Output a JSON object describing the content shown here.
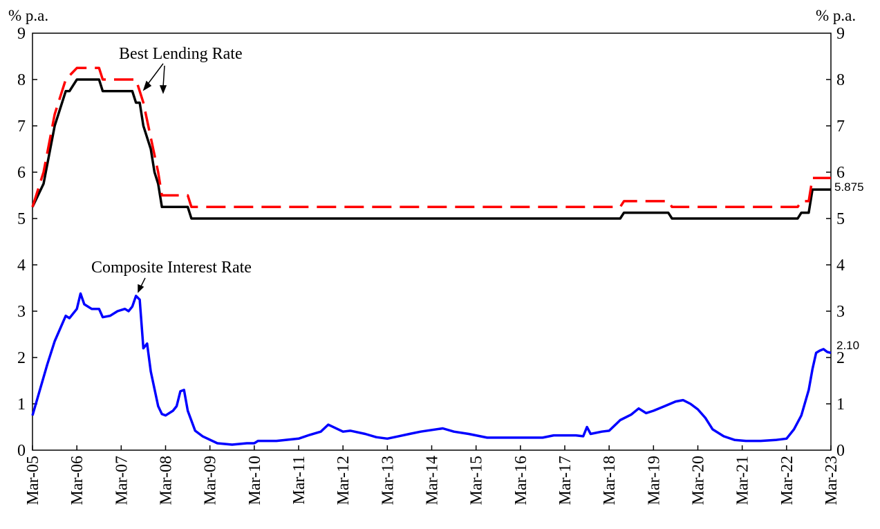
{
  "chart_data": {
    "type": "line",
    "title": "",
    "y_unit_label_left": "% p.a.",
    "y_unit_label_right": "% p.a.",
    "ylim": [
      0,
      9
    ],
    "y_ticks": [
      "0",
      "1",
      "2",
      "3",
      "4",
      "5",
      "6",
      "7",
      "8",
      "9"
    ],
    "xlim": [
      "2005-03",
      "2023-03"
    ],
    "x_ticks": [
      "Mar-05",
      "Mar-06",
      "Mar-07",
      "Mar-08",
      "Mar-09",
      "Mar-10",
      "Mar-11",
      "Mar-12",
      "Mar-13",
      "Mar-14",
      "Mar-15",
      "Mar-16",
      "Mar-17",
      "Mar-18",
      "Mar-19",
      "Mar-20",
      "Mar-21",
      "Mar-22",
      "Mar-23"
    ],
    "grid": false,
    "annotations": {
      "best_lending_rate": "Best Lending Rate",
      "composite_interest_rate": "Composite Interest Rate",
      "end_value_blr": "5.875",
      "end_value_composite": "2.10"
    },
    "series": [
      {
        "name": "Best Lending Rate",
        "color": "#000000",
        "style": "solid",
        "points": [
          [
            "2005-03",
            5.25
          ],
          [
            "2005-06",
            5.75
          ],
          [
            "2005-09",
            7.0
          ],
          [
            "2005-12",
            7.75
          ],
          [
            "2006-01",
            7.75
          ],
          [
            "2006-03",
            8.0
          ],
          [
            "2006-09",
            8.0
          ],
          [
            "2006-10",
            7.75
          ],
          [
            "2007-06",
            7.75
          ],
          [
            "2007-07",
            7.5
          ],
          [
            "2007-08",
            7.5
          ],
          [
            "2007-09",
            7.0
          ],
          [
            "2007-11",
            6.5
          ],
          [
            "2007-12",
            6.0
          ],
          [
            "2008-01",
            5.75
          ],
          [
            "2008-02",
            5.25
          ],
          [
            "2008-09",
            5.25
          ],
          [
            "2008-10",
            5.0
          ],
          [
            "2018-06",
            5.0
          ],
          [
            "2018-07",
            5.125
          ],
          [
            "2019-07",
            5.125
          ],
          [
            "2019-08",
            5.0
          ],
          [
            "2022-06",
            5.0
          ],
          [
            "2022-07",
            5.125
          ],
          [
            "2022-09",
            5.125
          ],
          [
            "2022-10",
            5.625
          ],
          [
            "2023-03",
            5.625
          ]
        ]
      },
      {
        "name": "Best Lending Rate",
        "color": "#ff0000",
        "style": "dashed",
        "points": [
          [
            "2005-03",
            5.25
          ],
          [
            "2005-06",
            6.0
          ],
          [
            "2005-09",
            7.25
          ],
          [
            "2005-12",
            8.0
          ],
          [
            "2006-03",
            8.25
          ],
          [
            "2006-09",
            8.25
          ],
          [
            "2006-10",
            8.0
          ],
          [
            "2007-07",
            8.0
          ],
          [
            "2007-08",
            7.75
          ],
          [
            "2007-09",
            7.5
          ],
          [
            "2007-11",
            6.75
          ],
          [
            "2008-01",
            6.0
          ],
          [
            "2008-02",
            5.5
          ],
          [
            "2008-09",
            5.5
          ],
          [
            "2008-10",
            5.25
          ],
          [
            "2018-06",
            5.25
          ],
          [
            "2018-07",
            5.375
          ],
          [
            "2019-07",
            5.375
          ],
          [
            "2019-08",
            5.25
          ],
          [
            "2022-06",
            5.25
          ],
          [
            "2022-07",
            5.375
          ],
          [
            "2022-09",
            5.375
          ],
          [
            "2022-10",
            5.875
          ],
          [
            "2023-03",
            5.875
          ]
        ]
      },
      {
        "name": "Composite Interest Rate",
        "color": "#0000ff",
        "style": "solid",
        "points": [
          [
            "2005-03",
            0.75
          ],
          [
            "2005-05",
            1.3
          ],
          [
            "2005-07",
            1.85
          ],
          [
            "2005-09",
            2.35
          ],
          [
            "2005-12",
            2.9
          ],
          [
            "2006-01",
            2.85
          ],
          [
            "2006-02",
            2.95
          ],
          [
            "2006-03",
            3.05
          ],
          [
            "2006-04",
            3.38
          ],
          [
            "2006-05",
            3.15
          ],
          [
            "2006-07",
            3.05
          ],
          [
            "2006-09",
            3.05
          ],
          [
            "2006-10",
            2.87
          ],
          [
            "2006-12",
            2.9
          ],
          [
            "2007-02",
            3.0
          ],
          [
            "2007-04",
            3.05
          ],
          [
            "2007-05",
            3.0
          ],
          [
            "2007-06",
            3.1
          ],
          [
            "2007-07",
            3.33
          ],
          [
            "2007-08",
            3.25
          ],
          [
            "2007-09",
            2.2
          ],
          [
            "2007-10",
            2.3
          ],
          [
            "2007-11",
            1.7
          ],
          [
            "2008-01",
            0.95
          ],
          [
            "2008-02",
            0.78
          ],
          [
            "2008-03",
            0.75
          ],
          [
            "2008-05",
            0.85
          ],
          [
            "2008-06",
            0.95
          ],
          [
            "2008-07",
            1.27
          ],
          [
            "2008-08",
            1.3
          ],
          [
            "2008-09",
            0.85
          ],
          [
            "2008-11",
            0.42
          ],
          [
            "2009-01",
            0.3
          ],
          [
            "2009-05",
            0.15
          ],
          [
            "2009-09",
            0.12
          ],
          [
            "2010-01",
            0.15
          ],
          [
            "2010-03",
            0.15
          ],
          [
            "2010-04",
            0.2
          ],
          [
            "2010-09",
            0.2
          ],
          [
            "2011-03",
            0.25
          ],
          [
            "2011-06",
            0.33
          ],
          [
            "2011-09",
            0.4
          ],
          [
            "2011-11",
            0.55
          ],
          [
            "2012-03",
            0.4
          ],
          [
            "2012-05",
            0.42
          ],
          [
            "2012-09",
            0.35
          ],
          [
            "2012-12",
            0.28
          ],
          [
            "2013-03",
            0.25
          ],
          [
            "2013-06",
            0.3
          ],
          [
            "2013-09",
            0.35
          ],
          [
            "2013-12",
            0.4
          ],
          [
            "2014-06",
            0.47
          ],
          [
            "2014-09",
            0.4
          ],
          [
            "2015-01",
            0.35
          ],
          [
            "2015-06",
            0.27
          ],
          [
            "2016-03",
            0.27
          ],
          [
            "2016-09",
            0.27
          ],
          [
            "2016-12",
            0.32
          ],
          [
            "2017-06",
            0.32
          ],
          [
            "2017-08",
            0.3
          ],
          [
            "2017-09",
            0.5
          ],
          [
            "2017-10",
            0.35
          ],
          [
            "2018-01",
            0.4
          ],
          [
            "2018-03",
            0.42
          ],
          [
            "2018-06",
            0.65
          ],
          [
            "2018-09",
            0.77
          ],
          [
            "2018-11",
            0.9
          ],
          [
            "2019-01",
            0.8
          ],
          [
            "2019-03",
            0.85
          ],
          [
            "2019-06",
            0.95
          ],
          [
            "2019-09",
            1.05
          ],
          [
            "2019-11",
            1.08
          ],
          [
            "2020-01",
            1.0
          ],
          [
            "2020-03",
            0.88
          ],
          [
            "2020-05",
            0.7
          ],
          [
            "2020-07",
            0.45
          ],
          [
            "2020-10",
            0.3
          ],
          [
            "2021-01",
            0.22
          ],
          [
            "2021-04",
            0.2
          ],
          [
            "2021-08",
            0.2
          ],
          [
            "2021-12",
            0.22
          ],
          [
            "2022-03",
            0.25
          ],
          [
            "2022-05",
            0.45
          ],
          [
            "2022-07",
            0.75
          ],
          [
            "2022-09",
            1.3
          ],
          [
            "2022-10",
            1.75
          ],
          [
            "2022-11",
            2.1
          ],
          [
            "2022-12",
            2.15
          ],
          [
            "2023-01",
            2.18
          ],
          [
            "2023-02",
            2.12
          ],
          [
            "2023-03",
            2.1
          ]
        ]
      }
    ]
  }
}
